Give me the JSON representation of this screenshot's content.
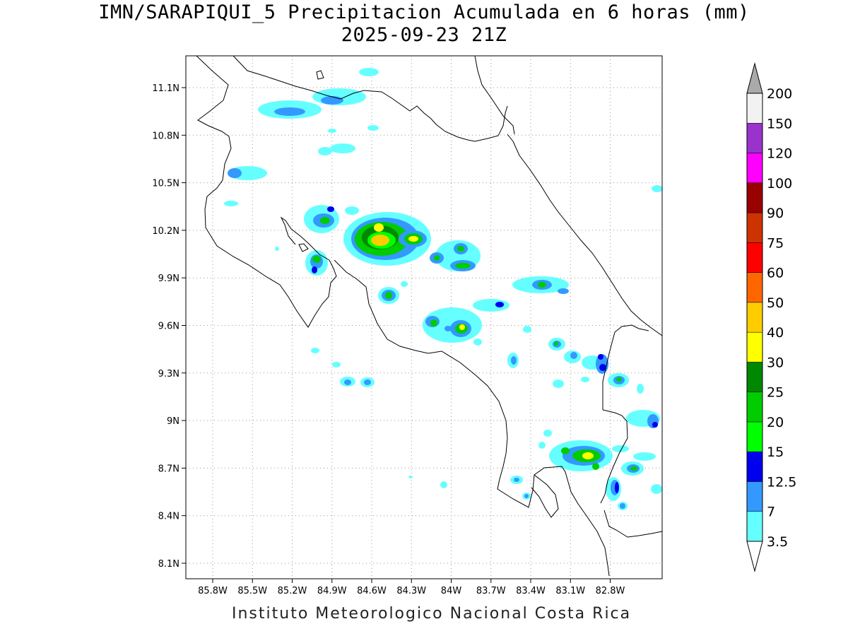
{
  "title_line1": "IMN/SARAPIQUI_5 Precipitacion Acumulada en 6 horas (mm)",
  "title_line2": "2025-09-23 21Z",
  "footer": "Instituto Meteorologico Nacional Costa Rica",
  "map": {
    "x_ticks": [
      "85.8W",
      "85.5W",
      "85.2W",
      "84.9W",
      "84.6W",
      "84.3W",
      "84W",
      "83.7W",
      "83.4W",
      "83.1W",
      "82.8W"
    ],
    "y_ticks": [
      "11.1N",
      "10.8N",
      "10.5N",
      "10.2N",
      "9.9N",
      "9.6N",
      "9.3N",
      "9N",
      "8.7N",
      "8.4N",
      "8.1N"
    ],
    "grid": "on (dotted)"
  },
  "colorbar": {
    "levels": [
      "3.5",
      "7",
      "12.5",
      "15",
      "20",
      "25",
      "30",
      "40",
      "50",
      "60",
      "75",
      "90",
      "100",
      "120",
      "150",
      "200"
    ],
    "colors": [
      "#ffffff",
      "#66ffff",
      "#3399ff",
      "#0000ee",
      "#00ff00",
      "#00cc00",
      "#008800",
      "#ffff00",
      "#ffcc00",
      "#ff6600",
      "#ff0000",
      "#cc3300",
      "#990000",
      "#ff00ff",
      "#9933cc",
      "#f2f2f2",
      "#aaaaaa"
    ]
  }
}
